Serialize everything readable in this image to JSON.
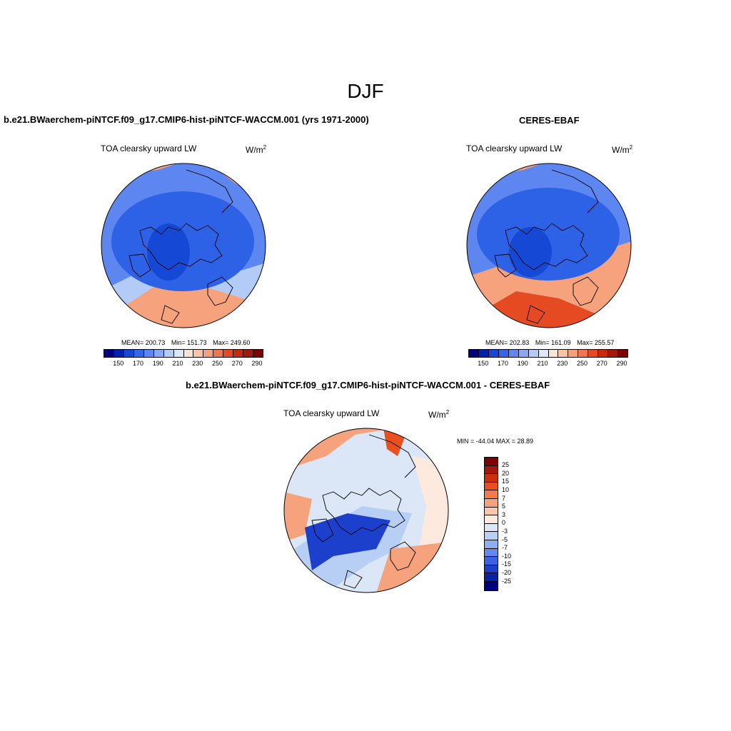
{
  "page": {
    "title": "DJF"
  },
  "panels": [
    {
      "id": "model",
      "title": "b.e21.BWaerchem-piNTCF.f09_g17.CMIP6-hist-piNTCF-WACCM.001 (yrs 1971-2000)",
      "variable": "TOA clearsky upward LW",
      "units_base": "W/m",
      "units_exp": "2",
      "stats": {
        "mean_label": "MEAN= 200.73",
        "min_label": "Min= 151.73",
        "max_label": "Max= 249.60"
      }
    },
    {
      "id": "obs",
      "title": "CERES-EBAF",
      "variable": "TOA clearsky upward LW",
      "units_base": "W/m",
      "units_exp": "2",
      "stats": {
        "mean_label": "MEAN= 202.83",
        "min_label": "Min= 161.09",
        "max_label": "Max= 255.57"
      }
    },
    {
      "id": "diff",
      "title": "b.e21.BWaerchem-piNTCF.f09_g17.CMIP6-hist-piNTCF-WACCM.001 - CERES-EBAF",
      "variable": "TOA clearsky upward LW",
      "units_base": "W/m",
      "units_exp": "2",
      "stats": {
        "minmax_label": "MIN = -44.04 MAX =  28.89"
      }
    }
  ],
  "colorbar_abs": {
    "colors": [
      "#00007f",
      "#0021b0",
      "#1648d6",
      "#3466e8",
      "#5d86f0",
      "#86a8f5",
      "#b2cbf7",
      "#dbe9fb",
      "#fde5d6",
      "#f9c3a6",
      "#f69f7b",
      "#f07650",
      "#e54a22",
      "#c82a0d",
      "#a2180a",
      "#7f0000"
    ],
    "ticks": [
      "150",
      "170",
      "190",
      "210",
      "230",
      "250",
      "270",
      "290"
    ]
  },
  "colorbar_diff": {
    "colors": [
      "#7f0000",
      "#a5170b",
      "#cc2f0f",
      "#ea4f20",
      "#f3794f",
      "#f6a27c",
      "#f9c8ac",
      "#fde9de",
      "#dbe7f7",
      "#b7cef5",
      "#8fadf2",
      "#6689ed",
      "#3c62e4",
      "#1d40cc",
      "#0a22a4",
      "#00007f"
    ],
    "ticks": [
      "25",
      "20",
      "15",
      "10",
      "7",
      "5",
      "3",
      "0",
      "-3",
      "-5",
      "-7",
      "-10",
      "-15",
      "-20",
      "-25"
    ]
  },
  "map_fields": {
    "model": {
      "base": "#2e62e6",
      "ring": "#5d86f0",
      "warm": "#f6a27c",
      "hot": "#f07650",
      "pale": "#b2cbf7",
      "deep": "#1648d6"
    },
    "obs": {
      "base": "#2e62e6",
      "ring": "#5d86f0",
      "warm": "#f6a27c",
      "hot": "#e54a22",
      "pale": "#b2cbf7",
      "deep": "#1648d6"
    },
    "diff": {
      "base": "#dbe7f7",
      "ring": "#b7cef5",
      "warm": "#f6a27c",
      "hot": "#ea4f20",
      "pale": "#fde9de",
      "deep": "#1d40cc"
    }
  }
}
